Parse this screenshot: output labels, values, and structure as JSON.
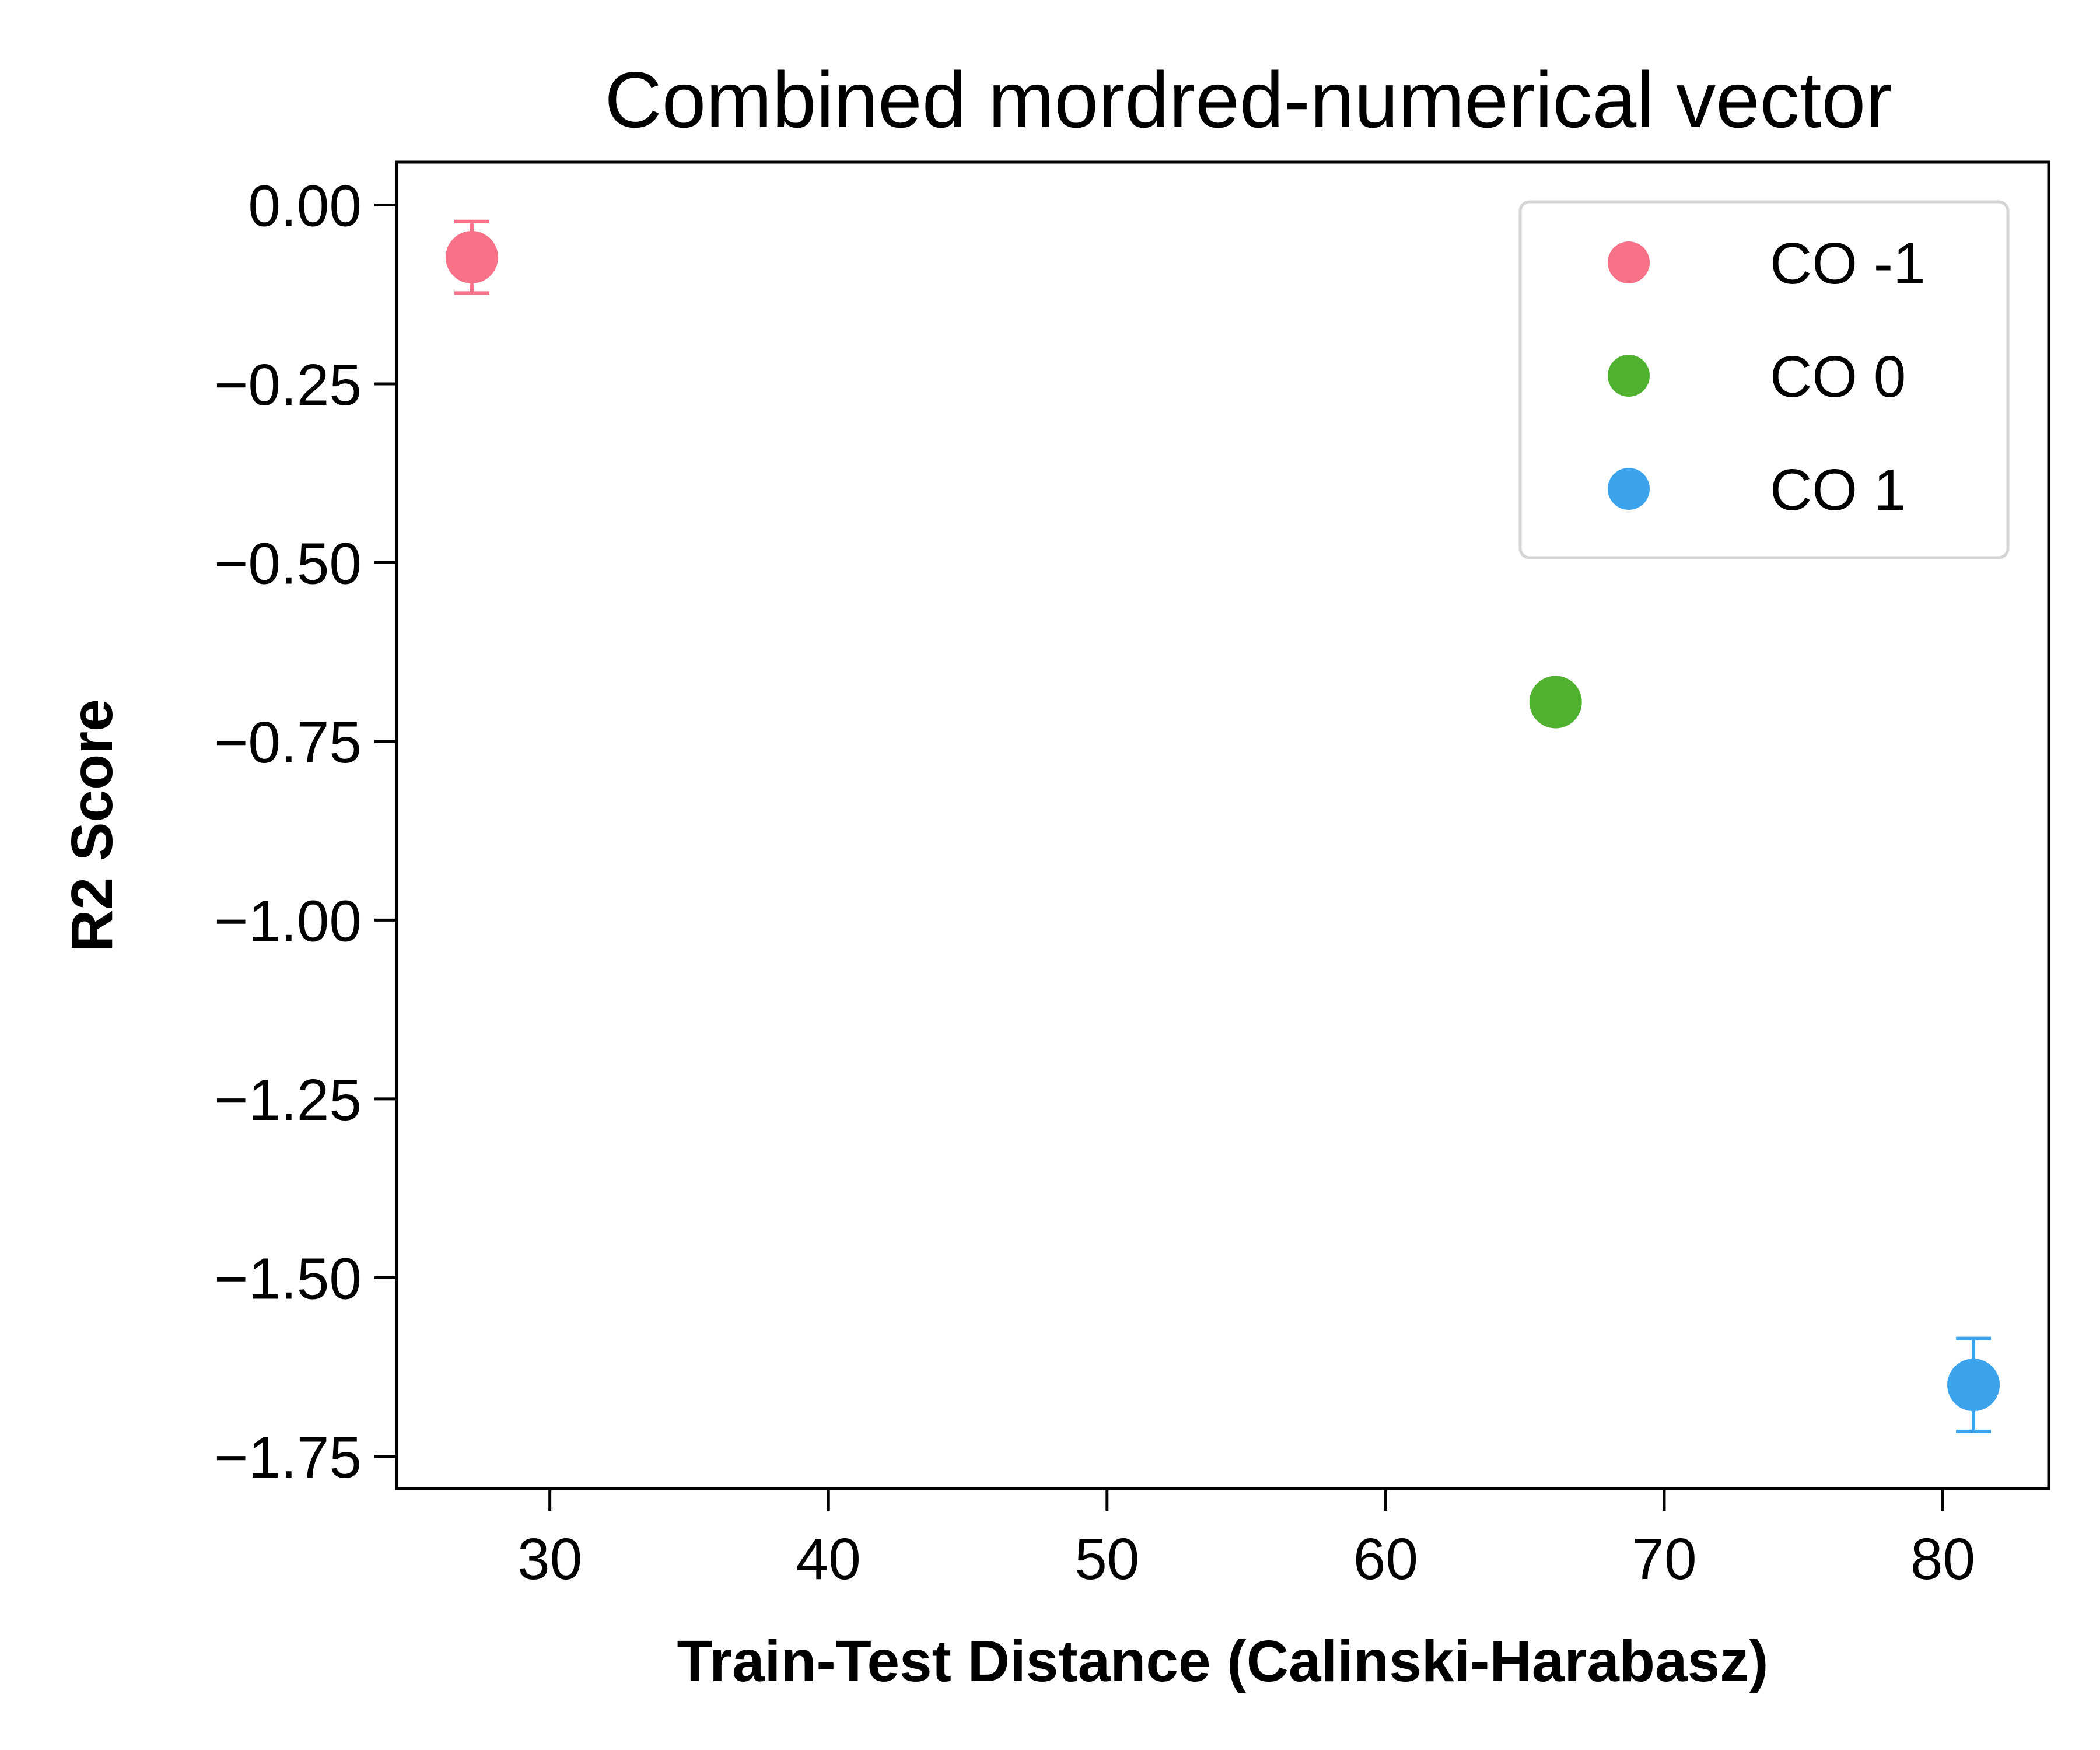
{
  "chart_data": {
    "type": "scatter",
    "title": "Combined mordred-numerical vector",
    "xlabel": "Train-Test Distance (Calinski-Harabasz)",
    "ylabel": "R2 Score",
    "xlim": [
      24.5,
      83.8
    ],
    "ylim": [
      -1.795,
      0.06
    ],
    "x_ticks": [
      30,
      40,
      50,
      60,
      70,
      80
    ],
    "x_tick_labels": [
      "30",
      "40",
      "50",
      "60",
      "70",
      "80"
    ],
    "y_ticks": [
      0,
      -0.25,
      -0.5,
      -0.75,
      -1.0,
      -1.25,
      -1.5,
      -1.75
    ],
    "y_tick_labels": [
      "0.00",
      "−0.25",
      "−0.50",
      "−0.75",
      "−1.00",
      "−1.25",
      "−1.50",
      "−1.75"
    ],
    "grid": false,
    "legend_position": "top-right",
    "series": [
      {
        "name": "CO -1",
        "color": "#f77189",
        "points": [
          {
            "x": 27.2,
            "y": -0.073,
            "err": 0.05
          }
        ]
      },
      {
        "name": "CO 0",
        "color": "#50b131",
        "points": [
          {
            "x": 66.1,
            "y": -0.695,
            "err": 0.004
          }
        ]
      },
      {
        "name": "CO 1",
        "color": "#3ba3ec",
        "points": [
          {
            "x": 81.1,
            "y": -1.65,
            "err": 0.065
          }
        ]
      }
    ]
  }
}
